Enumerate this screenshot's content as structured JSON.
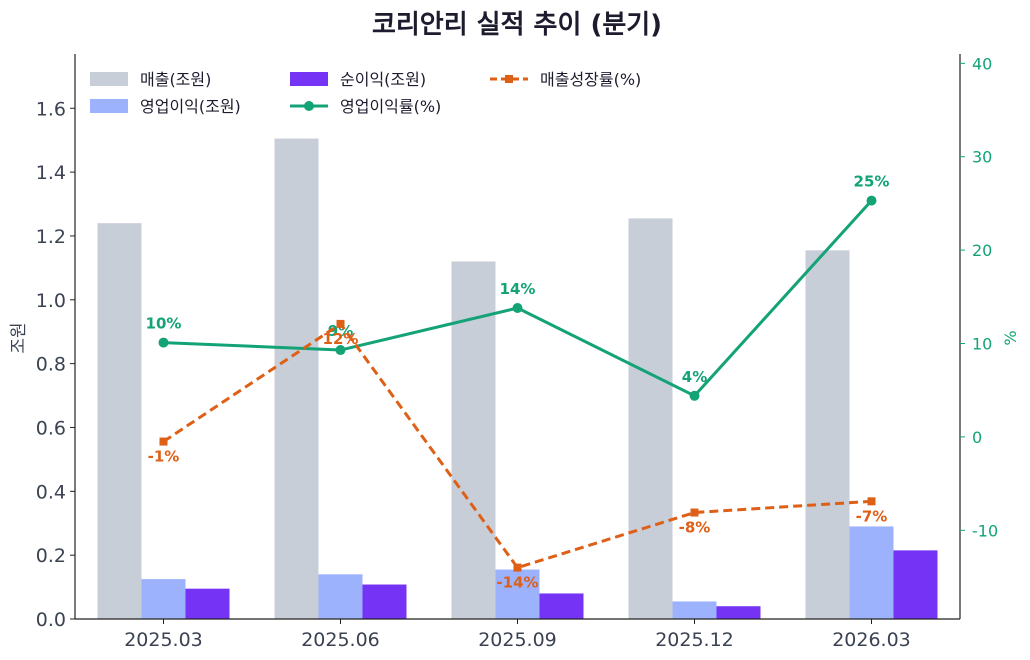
{
  "chart_data": {
    "type": "bar",
    "title": "코리안리 실적 추이 (분기)",
    "categories": [
      "2025.03",
      "2025.06",
      "2025.09",
      "2025.12",
      "2026.03"
    ],
    "ylabel": "조원",
    "y2label": "%",
    "ylim": [
      0,
      1.77
    ],
    "y2lim": [
      -19.5,
      41
    ],
    "yticks": [
      0.0,
      0.2,
      0.4,
      0.6,
      0.8,
      1.0,
      1.2,
      1.4,
      1.6
    ],
    "y2ticks": [
      -10,
      0,
      10,
      20,
      30,
      40
    ],
    "bar_series": [
      {
        "name": "매출(조원)",
        "color": "#c8ced8",
        "values": [
          1.24,
          1.505,
          1.12,
          1.255,
          1.155
        ]
      },
      {
        "name": "영업이익(조원)",
        "color": "#9db2fd",
        "values": [
          0.125,
          0.14,
          0.155,
          0.055,
          0.29
        ]
      },
      {
        "name": "순이익(조원)",
        "color": "#7433f5",
        "values": [
          0.095,
          0.108,
          0.08,
          0.04,
          0.215
        ]
      }
    ],
    "line_series": [
      {
        "name": "영업이익률(%)",
        "color": "#13a377",
        "style": "solid",
        "marker": "circle",
        "values": [
          10.1,
          9.3,
          13.8,
          4.4,
          25.3
        ],
        "labels": [
          "10%",
          "9%",
          "14%",
          "4%",
          "25%"
        ]
      },
      {
        "name": "매출성장률(%)",
        "color": "#de5f16",
        "style": "dashed",
        "marker": "square",
        "values": [
          -0.5,
          12.1,
          -14.0,
          -8.1,
          -6.9
        ],
        "labels": [
          "-1%",
          "12%",
          "-14%",
          "-8%",
          "-7%"
        ]
      }
    ],
    "legend_position": "top-left",
    "grid": false
  }
}
